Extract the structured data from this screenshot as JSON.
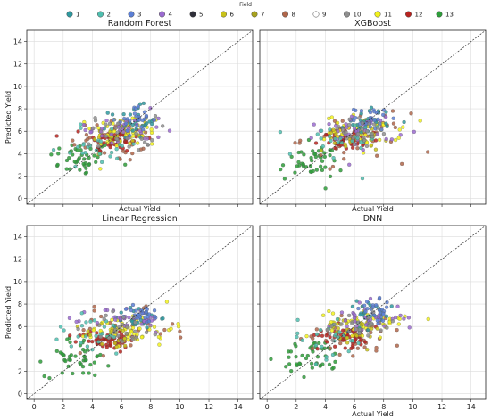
{
  "legend": {
    "title": "Field",
    "entries": [
      {
        "label": "1",
        "color": "#2e9aa0"
      },
      {
        "label": "2",
        "color": "#4fbfb0"
      },
      {
        "label": "3",
        "color": "#5b7fd6"
      },
      {
        "label": "4",
        "color": "#9b6bd0"
      },
      {
        "label": "5",
        "color": "#2f2f3a"
      },
      {
        "label": "6",
        "color": "#c9c21a"
      },
      {
        "label": "7",
        "color": "#a8a21e"
      },
      {
        "label": "8",
        "color": "#b0664a"
      },
      {
        "label": "9",
        "color": "#ffffff"
      },
      {
        "label": "10",
        "color": "#8f8f8f"
      },
      {
        "label": "11",
        "color": "#f2f21c"
      },
      {
        "label": "12",
        "color": "#b8231f"
      },
      {
        "label": "13",
        "color": "#2e9e3a"
      }
    ]
  },
  "chart_data": [
    {
      "type": "scatter",
      "title": "Random Forest",
      "xlabel": "Actual Yield",
      "ylabel": "Predicted Yield",
      "xlim": [
        -0.5,
        15
      ],
      "ylim": [
        -0.5,
        15
      ],
      "xticks": [],
      "yticks": [
        "0",
        "2",
        "4",
        "6",
        "8",
        "10",
        "12",
        "14"
      ],
      "reference_line": "y = x",
      "grid": true,
      "clusters": [
        {
          "field": "13",
          "center": [
            3.2,
            3.6
          ],
          "spread": [
            1.1,
            0.8
          ],
          "n": 45,
          "mode": "mixed"
        },
        {
          "field": "8",
          "center": [
            5.5,
            5.2
          ],
          "spread": [
            1.5,
            1.0
          ],
          "n": 40,
          "mode": "mixed"
        },
        {
          "field": "12",
          "center": [
            5.6,
            5.3
          ],
          "spread": [
            1.0,
            0.6
          ],
          "n": 60,
          "mode": "mixed"
        },
        {
          "field": "11",
          "center": [
            6.4,
            6.0
          ],
          "spread": [
            1.2,
            0.8
          ],
          "n": 50,
          "mode": "mixed"
        },
        {
          "field": "6",
          "center": [
            6.0,
            5.8
          ],
          "spread": [
            1.0,
            0.8
          ],
          "n": 25,
          "mode": "mixed"
        },
        {
          "field": "1",
          "center": [
            6.8,
            6.8
          ],
          "spread": [
            0.8,
            0.7
          ],
          "n": 30,
          "mode": "mixed"
        },
        {
          "field": "4",
          "center": [
            6.2,
            6.2
          ],
          "spread": [
            1.3,
            0.8
          ],
          "n": 35,
          "mode": "mixed"
        },
        {
          "field": "3",
          "center": [
            7.0,
            7.0
          ],
          "spread": [
            0.6,
            0.6
          ],
          "n": 25,
          "mode": "mixed"
        },
        {
          "field": "2",
          "center": [
            4.5,
            4.8
          ],
          "spread": [
            1.5,
            1.0
          ],
          "n": 25,
          "mode": "mixed"
        },
        {
          "field": "10",
          "center": [
            6.0,
            5.8
          ],
          "spread": [
            1.2,
            0.8
          ],
          "n": 25,
          "mode": "mixed"
        }
      ]
    },
    {
      "type": "scatter",
      "title": "XGBoost",
      "xlabel": "Actual Yield",
      "ylabel": "",
      "xlim": [
        -0.5,
        15
      ],
      "ylim": [
        -0.5,
        15
      ],
      "xticks": [],
      "yticks": [],
      "reference_line": "y = x",
      "grid": true,
      "clusters": [
        {
          "field": "13",
          "center": [
            3.0,
            3.2
          ],
          "spread": [
            1.1,
            0.8
          ],
          "n": 45,
          "mode": "mixed"
        },
        {
          "field": "8",
          "center": [
            6.0,
            5.4
          ],
          "spread": [
            1.8,
            1.1
          ],
          "n": 40,
          "mode": "mixed"
        },
        {
          "field": "12",
          "center": [
            5.7,
            5.3
          ],
          "spread": [
            1.0,
            0.5
          ],
          "n": 60,
          "mode": "mixed"
        },
        {
          "field": "11",
          "center": [
            6.6,
            6.0
          ],
          "spread": [
            1.3,
            0.7
          ],
          "n": 50,
          "mode": "mixed"
        },
        {
          "field": "6",
          "center": [
            6.0,
            5.6
          ],
          "spread": [
            1.1,
            0.7
          ],
          "n": 25,
          "mode": "mixed"
        },
        {
          "field": "1",
          "center": [
            7.0,
            6.9
          ],
          "spread": [
            0.8,
            0.6
          ],
          "n": 30,
          "mode": "mixed"
        },
        {
          "field": "4",
          "center": [
            6.3,
            6.1
          ],
          "spread": [
            1.3,
            0.8
          ],
          "n": 35,
          "mode": "mixed"
        },
        {
          "field": "3",
          "center": [
            7.2,
            7.1
          ],
          "spread": [
            0.6,
            0.5
          ],
          "n": 25,
          "mode": "mixed"
        },
        {
          "field": "2",
          "center": [
            4.5,
            4.8
          ],
          "spread": [
            1.5,
            1.0
          ],
          "n": 25,
          "mode": "mixed"
        },
        {
          "field": "10",
          "center": [
            6.2,
            5.9
          ],
          "spread": [
            1.3,
            0.8
          ],
          "n": 25,
          "mode": "mixed"
        }
      ]
    },
    {
      "type": "scatter",
      "title": "Linear Regression",
      "xlabel": "",
      "ylabel": "Predicted Yield",
      "xlim": [
        -0.5,
        15
      ],
      "ylim": [
        -0.5,
        15
      ],
      "xticks": [
        "0",
        "2",
        "4",
        "6",
        "8",
        "10",
        "12",
        "14"
      ],
      "yticks": [
        "0",
        "2",
        "4",
        "6",
        "8",
        "10",
        "12",
        "14"
      ],
      "reference_line": "y = x",
      "grid": true,
      "clusters": [
        {
          "field": "13",
          "center": [
            3.0,
            3.3
          ],
          "spread": [
            1.1,
            0.9
          ],
          "n": 45,
          "mode": "mixed"
        },
        {
          "field": "8",
          "center": [
            6.0,
            5.6
          ],
          "spread": [
            1.8,
            0.9
          ],
          "n": 40,
          "mode": "mixed"
        },
        {
          "field": "12",
          "center": [
            5.0,
            4.8
          ],
          "spread": [
            1.0,
            0.4
          ],
          "n": 60,
          "mode": "mixed"
        },
        {
          "field": "11",
          "center": [
            6.8,
            5.8
          ],
          "spread": [
            1.4,
            0.7
          ],
          "n": 50,
          "mode": "mixed"
        },
        {
          "field": "6",
          "center": [
            5.5,
            5.2
          ],
          "spread": [
            1.1,
            0.6
          ],
          "n": 25,
          "mode": "mixed"
        },
        {
          "field": "1",
          "center": [
            7.0,
            6.8
          ],
          "spread": [
            0.8,
            0.5
          ],
          "n": 30,
          "mode": "mixed"
        },
        {
          "field": "4",
          "center": [
            6.5,
            6.6
          ],
          "spread": [
            1.3,
            0.6
          ],
          "n": 35,
          "mode": "mixed"
        },
        {
          "field": "3",
          "center": [
            7.5,
            7.1
          ],
          "spread": [
            0.6,
            0.4
          ],
          "n": 25,
          "mode": "mixed"
        },
        {
          "field": "2",
          "center": [
            4.0,
            5.2
          ],
          "spread": [
            1.5,
            1.0
          ],
          "n": 25,
          "mode": "mixed"
        },
        {
          "field": "10",
          "center": [
            6.2,
            5.9
          ],
          "spread": [
            1.3,
            0.7
          ],
          "n": 25,
          "mode": "mixed"
        }
      ]
    },
    {
      "type": "scatter",
      "title": "DNN",
      "xlabel": "Actual Yield",
      "ylabel": "",
      "xlim": [
        -0.5,
        15
      ],
      "ylim": [
        -0.5,
        15
      ],
      "xticks": [
        "0",
        "2",
        "4",
        "6",
        "8",
        "10",
        "12",
        "14"
      ],
      "yticks": [],
      "reference_line": "y = x",
      "grid": true,
      "clusters": [
        {
          "field": "13",
          "center": [
            3.2,
            3.2
          ],
          "spread": [
            1.1,
            0.8
          ],
          "n": 45,
          "mode": "mixed"
        },
        {
          "field": "8",
          "center": [
            6.0,
            5.4
          ],
          "spread": [
            1.8,
            1.0
          ],
          "n": 40,
          "mode": "mixed"
        },
        {
          "field": "12",
          "center": [
            5.5,
            5.2
          ],
          "spread": [
            1.0,
            0.5
          ],
          "n": 60,
          "mode": "mixed"
        },
        {
          "field": "11",
          "center": [
            6.9,
            6.4
          ],
          "spread": [
            1.3,
            0.6
          ],
          "n": 50,
          "mode": "mixed"
        },
        {
          "field": "6",
          "center": [
            6.0,
            5.8
          ],
          "spread": [
            1.1,
            0.7
          ],
          "n": 25,
          "mode": "mixed"
        },
        {
          "field": "1",
          "center": [
            7.0,
            7.0
          ],
          "spread": [
            0.8,
            0.6
          ],
          "n": 30,
          "mode": "mixed"
        },
        {
          "field": "4",
          "center": [
            6.8,
            6.8
          ],
          "spread": [
            1.3,
            0.7
          ],
          "n": 35,
          "mode": "mixed"
        },
        {
          "field": "3",
          "center": [
            7.6,
            7.3
          ],
          "spread": [
            0.6,
            0.5
          ],
          "n": 25,
          "mode": "mixed"
        },
        {
          "field": "2",
          "center": [
            4.0,
            5.0
          ],
          "spread": [
            1.5,
            1.0
          ],
          "n": 25,
          "mode": "mixed"
        },
        {
          "field": "10",
          "center": [
            6.3,
            6.0
          ],
          "spread": [
            1.3,
            0.7
          ],
          "n": 25,
          "mode": "mixed"
        }
      ]
    }
  ]
}
